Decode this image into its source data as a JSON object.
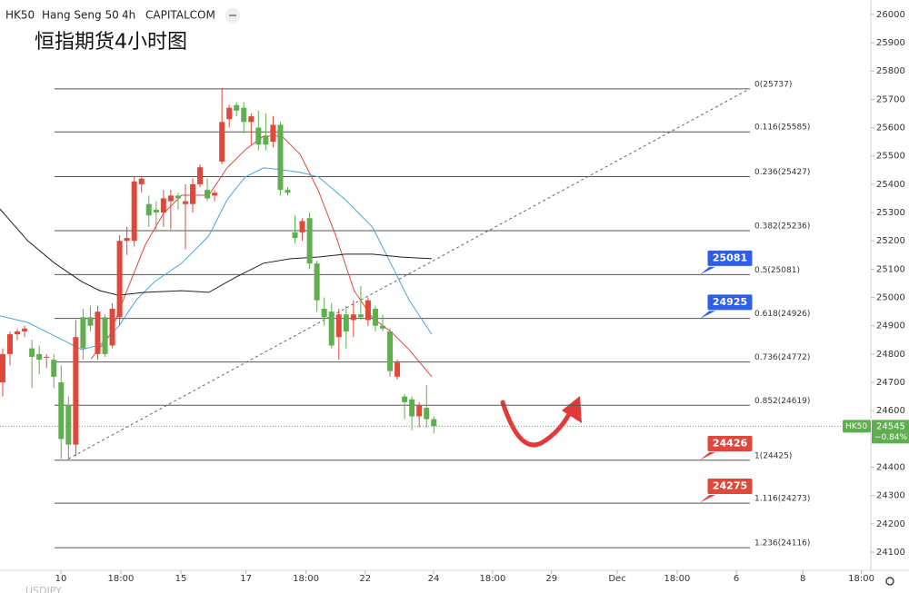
{
  "header": {
    "symbol": "HK50",
    "name": "Hang Seng 50",
    "interval": "4h",
    "source": "CAPITALCOM"
  },
  "footer_symbol": "USDJPY",
  "chart_data": {
    "type": "candlestick",
    "title": "恒指期货4小时图",
    "up_color": "#e0483c",
    "down_color": "#5fae4f",
    "x": [
      0,
      1,
      2,
      3,
      4,
      5,
      6,
      7,
      8,
      9,
      10,
      11,
      12,
      13,
      14,
      15,
      16,
      17,
      18,
      19,
      20,
      21,
      22,
      23,
      24,
      25,
      26,
      27,
      28,
      29,
      30,
      31,
      32,
      33,
      34,
      35,
      36,
      37,
      38,
      39,
      40,
      41,
      42,
      43,
      44,
      45,
      46,
      47,
      48,
      49,
      50,
      51,
      52,
      53,
      54,
      55,
      56,
      57,
      58,
      59
    ],
    "open": [
      24700,
      24800,
      24870,
      24880,
      24820,
      24800,
      24790,
      24780,
      24700,
      24620,
      24480,
      24930,
      24930,
      24800,
      24930,
      24830,
      24930,
      25200,
      25200,
      25400,
      25330,
      25310,
      25300,
      25340,
      25360,
      25330,
      25330,
      25400,
      25380,
      25360,
      25480,
      25630,
      25680,
      25670,
      25620,
      25600,
      25570,
      25550,
      25610,
      25380,
      25230,
      25230,
      25280,
      25120,
      24960,
      24950,
      24860,
      24940,
      24920,
      24940,
      24920,
      24960,
      24900,
      24880,
      24720,
      24650,
      24640,
      24580,
      24610,
      24570
    ],
    "high": [
      24820,
      24880,
      24890,
      24900,
      24850,
      24830,
      24800,
      24800,
      24760,
      24650,
      24920,
      24960,
      24970,
      24970,
      24940,
      24980,
      25220,
      25250,
      25430,
      25430,
      25360,
      25340,
      25380,
      25380,
      25370,
      25400,
      25420,
      25470,
      25420,
      25380,
      25740,
      25680,
      25690,
      25690,
      25650,
      25660,
      25650,
      25640,
      25620,
      25390,
      25290,
      25280,
      25300,
      25130,
      25000,
      24980,
      24960,
      24970,
      24990,
      25040,
      25000,
      24970,
      24940,
      24890,
      24780,
      24660,
      24650,
      24630,
      24690,
      24580
    ],
    "low": [
      24650,
      24760,
      24850,
      24860,
      24680,
      24730,
      24750,
      24680,
      24430,
      24425,
      24440,
      24780,
      24880,
      24780,
      24790,
      24820,
      24900,
      25150,
      25180,
      25370,
      25250,
      25240,
      25250,
      25240,
      25310,
      25170,
      25300,
      25390,
      25340,
      25340,
      25470,
      25600,
      25640,
      25580,
      25540,
      25520,
      25520,
      25530,
      25360,
      25360,
      25190,
      25200,
      25100,
      24950,
      24900,
      24820,
      24780,
      24820,
      24860,
      24920,
      24900,
      24880,
      24880,
      24720,
      24710,
      24570,
      24530,
      24540,
      24540,
      24520
    ],
    "close": [
      24800,
      24870,
      24880,
      24890,
      24790,
      24780,
      24790,
      24720,
      24500,
      24480,
      24860,
      24820,
      24900,
      24950,
      24800,
      24960,
      25200,
      25210,
      25410,
      25420,
      25290,
      25300,
      25350,
      25360,
      25350,
      25340,
      25400,
      25460,
      25350,
      25370,
      25620,
      25670,
      25660,
      25620,
      25640,
      25540,
      25540,
      25610,
      25380,
      25370,
      25210,
      25270,
      25120,
      24990,
      24930,
      24830,
      24940,
      24880,
      24940,
      24930,
      24990,
      24900,
      24890,
      24740,
      24770,
      24630,
      24580,
      24620,
      24570,
      24545
    ],
    "series": [
      {
        "name": "MA fast",
        "color": "#e0483c",
        "x": [
          12.1,
          14.6,
          17,
          19.5,
          22,
          24.5,
          28.2,
          30.7,
          33.2,
          35.7,
          38.2,
          40.7,
          43.2,
          45.6,
          48.1,
          50.6,
          53.1,
          55.6,
          58.7
        ],
        "values": [
          24784,
          24864,
          25024,
          25185,
          25297,
          25361,
          25361,
          25458,
          25522,
          25570,
          25570,
          25506,
          25377,
          25217,
          25024,
          24928,
          24880,
          24816,
          24720
        ]
      },
      {
        "name": "MA mid",
        "color": "#4aa3e0",
        "x": [
          -0.4,
          3.4,
          7.1,
          10.8,
          13.3,
          15.8,
          18.3,
          20.8,
          24.5,
          28.2,
          30.7,
          33.2,
          35.7,
          38.2,
          40.7,
          43.2,
          46.9,
          50.6,
          53.1,
          55.6,
          58.7
        ],
        "values": [
          24935,
          24912,
          24864,
          24816,
          24832,
          24896,
          24992,
          25056,
          25121,
          25217,
          25345,
          25426,
          25458,
          25451,
          25442,
          25426,
          25345,
          25249,
          25121,
          24992,
          24870
        ]
      },
      {
        "name": "MA slow",
        "color": "#222222",
        "x": [
          -0.4,
          3.4,
          7.1,
          10.8,
          13.3,
          15.8,
          19.5,
          24.5,
          28.2,
          32,
          35.7,
          39.4,
          43.2,
          46.9,
          50.6,
          54.4,
          58.7
        ],
        "values": [
          25313,
          25201,
          25121,
          25056,
          25024,
          25008,
          25018,
          25024,
          25018,
          25073,
          25121,
          25137,
          25143,
          25153,
          25153,
          25143,
          25137
        ]
      }
    ],
    "trendline": {
      "x": [
        9,
        102.2
      ],
      "values": [
        24430,
        25737
      ]
    },
    "fib_levels": [
      {
        "label": "0(25737)",
        "value": 25737
      },
      {
        "label": "0.116(25585)",
        "value": 25585
      },
      {
        "label": "0.236(25427)",
        "value": 25427
      },
      {
        "label": "0.382(25236)",
        "value": 25236
      },
      {
        "label": "0.5(25081)",
        "value": 25081
      },
      {
        "label": "0.618(24926)",
        "value": 24926
      },
      {
        "label": "0.736(24772)",
        "value": 24772
      },
      {
        "label": "0.852(24619)",
        "value": 24619
      },
      {
        "label": "1(24425)",
        "value": 24425
      },
      {
        "label": "1.116(24273)",
        "value": 24273
      },
      {
        "label": "1.236(24116)",
        "value": 24116
      }
    ],
    "annotations": [
      {
        "value": 25081,
        "color": "#2f5ee8"
      },
      {
        "value": 24925,
        "color": "#2f5ee8"
      },
      {
        "value": 24426,
        "color": "#e0483c"
      },
      {
        "value": 24275,
        "color": "#e0483c"
      }
    ],
    "price_tag": {
      "symbol": "HK50",
      "value": 24545,
      "change": "−0.84%",
      "color": "#5fae4f"
    },
    "xlim": [
      -0.37,
      118.8
    ],
    "xticks": [
      {
        "value": 7.96,
        "label": "10"
      },
      {
        "value": 16.17,
        "label": "18:00"
      },
      {
        "value": 24.38,
        "label": "15"
      },
      {
        "value": 33.3,
        "label": "17"
      },
      {
        "value": 41.5,
        "label": "18:00"
      },
      {
        "value": 49.6,
        "label": "22"
      },
      {
        "value": 58.96,
        "label": "24"
      },
      {
        "value": 67.04,
        "label": "18:00"
      },
      {
        "value": 75.1,
        "label": "29"
      },
      {
        "value": 84.1,
        "label": "Dec"
      },
      {
        "value": 92.3,
        "label": "18:00"
      },
      {
        "value": 100.4,
        "label": "6"
      },
      {
        "value": 109.5,
        "label": "8"
      },
      {
        "value": 117.5,
        "label": "18:00"
      }
    ],
    "ylim": [
      24036,
      26051
    ],
    "yticks": [
      24100,
      24200,
      24300,
      24400,
      24500,
      24600,
      24700,
      24800,
      24900,
      25000,
      25100,
      25200,
      25300,
      25400,
      25500,
      25600,
      25700,
      25800,
      25900,
      26000
    ]
  }
}
